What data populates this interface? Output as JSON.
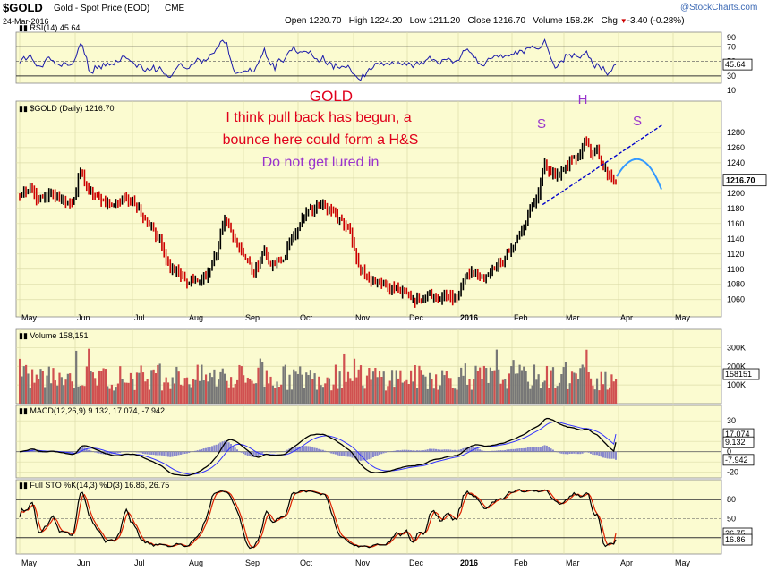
{
  "header": {
    "symbol": "$GOLD",
    "description": "Gold - Spot Price (EOD)",
    "exchange": "CME",
    "date": "24-Mar-2016",
    "logo": "@StockCharts.com",
    "ohlc": [
      {
        "label": "Open",
        "value": "1220.70"
      },
      {
        "label": "High",
        "value": "1224.20"
      },
      {
        "label": "Low",
        "value": "1211.20"
      },
      {
        "label": "Close",
        "value": "1216.70"
      },
      {
        "label": "Volume",
        "value": "158.2K"
      },
      {
        "label": "Chg",
        "value": "-3.40 (-0.28%)"
      }
    ],
    "chg_marker": "▼"
  },
  "colors": {
    "panel_bg": "#fbfbd0",
    "up": "#000000",
    "down": "#cc0000",
    "grid": "#dcdcaa",
    "trendline": "#0000cc",
    "annotation_red": "#e0001b",
    "annotation_purple": "#9933cc",
    "forecast_arc": "#3399ff",
    "rsi_line": "#1a1aaa",
    "macd_line": "#000000",
    "signal_line": "#3333ff",
    "histogram": "#8888cc",
    "k_line": "#000000",
    "d_line": "#dd2200"
  },
  "annotations": {
    "title": "GOLD",
    "line1": "I think  pull back has begun, a",
    "line2": "bounce here could form a H&S",
    "line3": "Do not get lured in",
    "left_shoulder": "S",
    "head": "H",
    "right_shoulder": "S"
  },
  "chart_data": [
    {
      "type": "candlestick",
      "title": "$GOLD (Daily) 1216.70",
      "last_value": "1216.70",
      "ylim": [
        1042,
        1307
      ],
      "yticks": [
        "1280",
        "1260",
        "1240",
        "1220",
        "1200",
        "1180",
        "1160",
        "1140",
        "1120",
        "1100",
        "1080",
        "1060"
      ],
      "x_labels": [
        "May",
        "Jun",
        "Jul",
        "Aug",
        "Sep",
        "Oct",
        "Nov",
        "Dec",
        "2016",
        "Feb",
        "Mar",
        "Apr",
        "May"
      ],
      "anchors_close": [
        [
          0,
          1195
        ],
        [
          5,
          1210
        ],
        [
          9,
          1190
        ],
        [
          14,
          1200
        ],
        [
          20,
          1192
        ],
        [
          25,
          1185
        ],
        [
          29,
          1230
        ],
        [
          33,
          1205
        ],
        [
          40,
          1190
        ],
        [
          45,
          1185
        ],
        [
          50,
          1195
        ],
        [
          55,
          1185
        ],
        [
          60,
          1165
        ],
        [
          67,
          1140
        ],
        [
          72,
          1100
        ],
        [
          76,
          1095
        ],
        [
          80,
          1082
        ],
        [
          85,
          1085
        ],
        [
          90,
          1095
        ],
        [
          94,
          1120
        ],
        [
          98,
          1165
        ],
        [
          103,
          1140
        ],
        [
          107,
          1120
        ],
        [
          112,
          1095
        ],
        [
          117,
          1125
        ],
        [
          120,
          1105
        ],
        [
          126,
          1112
        ],
        [
          130,
          1142
        ],
        [
          134,
          1160
        ],
        [
          138,
          1178
        ],
        [
          141,
          1180
        ],
        [
          145,
          1190
        ],
        [
          149,
          1175
        ],
        [
          154,
          1165
        ],
        [
          158,
          1150
        ],
        [
          162,
          1105
        ],
        [
          166,
          1090
        ],
        [
          171,
          1085
        ],
        [
          176,
          1077
        ],
        [
          181,
          1072
        ],
        [
          186,
          1065
        ],
        [
          191,
          1058
        ],
        [
          196,
          1070
        ],
        [
          200,
          1060
        ],
        [
          205,
          1065
        ],
        [
          209,
          1062
        ],
        [
          213,
          1090
        ],
        [
          217,
          1095
        ],
        [
          222,
          1085
        ],
        [
          227,
          1100
        ],
        [
          232,
          1115
        ],
        [
          237,
          1135
        ],
        [
          241,
          1155
        ],
        [
          245,
          1185
        ],
        [
          248,
          1200
        ],
        [
          251,
          1240
        ],
        [
          253,
          1228
        ],
        [
          257,
          1225
        ],
        [
          261,
          1236
        ],
        [
          265,
          1248
        ],
        [
          268,
          1250
        ],
        [
          270,
          1272
        ],
        [
          272,
          1262
        ],
        [
          274,
          1250
        ],
        [
          276,
          1258
        ],
        [
          278,
          1238
        ],
        [
          279,
          1232
        ],
        [
          281,
          1225
        ],
        [
          283,
          1220
        ],
        [
          285,
          1216.7
        ]
      ],
      "trendline": [
        [
          250,
          1185
        ],
        [
          285,
          1234
        ]
      ],
      "forecast_arc": [
        [
          285,
          1234
        ],
        [
          290,
          1250
        ],
        [
          296,
          1228
        ],
        [
          300,
          1205
        ]
      ]
    },
    {
      "type": "volume",
      "label": "Volume 158,151",
      "last_value": "158151",
      "yticks": [
        "300K",
        "200K",
        "100K"
      ],
      "ylim": [
        0,
        350000
      ]
    },
    {
      "type": "line",
      "indicator": "RSI",
      "label": "RSI(14) 45.64",
      "last_value": "45.64",
      "ylim": [
        20,
        90
      ],
      "yticks": [
        "90",
        "70",
        "50",
        "30",
        "10"
      ],
      "levels": [
        70,
        30
      ]
    },
    {
      "type": "line",
      "indicator": "MACD",
      "label_prefix": "MACD(12,26,9)",
      "macd": "9.132",
      "signal": "17.074",
      "histogram": "-7.942",
      "ylim": [
        -22,
        38
      ],
      "yticks": [
        "30",
        "10",
        "0",
        "-10",
        "-20"
      ]
    },
    {
      "type": "line",
      "indicator": "Full Stochastic",
      "label_prefix": "Full STO %K(14,3) %D(3)",
      "k": "16.86",
      "d": "26.75",
      "ylim": [
        0,
        100
      ],
      "yticks": [
        "80",
        "50",
        "20"
      ],
      "levels": [
        80,
        50,
        20
      ]
    }
  ]
}
